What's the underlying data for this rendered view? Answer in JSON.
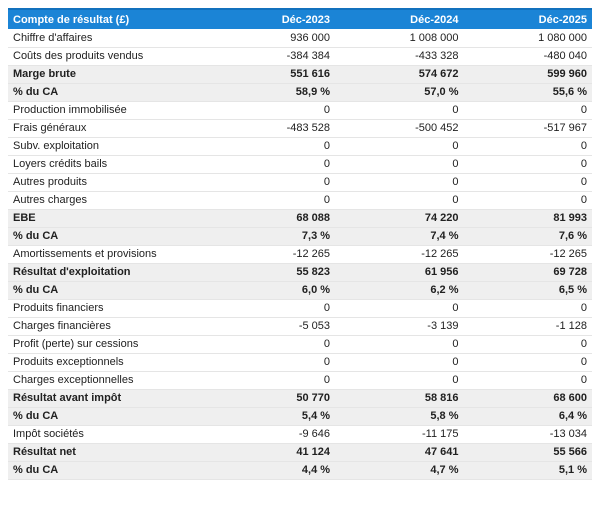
{
  "table": {
    "title": "Compte de résultat (£)",
    "columns": [
      "Déc-2023",
      "Déc-2024",
      "Déc-2025"
    ],
    "rows": [
      {
        "label": "Chiffre d'affaires",
        "values": [
          "936 000",
          "1 008 000",
          "1 080 000"
        ],
        "bold": false
      },
      {
        "label": "Coûts des produits vendus",
        "values": [
          "-384 384",
          "-433 328",
          "-480 040"
        ],
        "bold": false
      },
      {
        "label": "Marge brute",
        "values": [
          "551 616",
          "574 672",
          "599 960"
        ],
        "bold": true
      },
      {
        "label": "% du CA",
        "values": [
          "58,9 %",
          "57,0 %",
          "55,6 %"
        ],
        "bold": true
      },
      {
        "label": "Production immobilisée",
        "values": [
          "0",
          "0",
          "0"
        ],
        "bold": false
      },
      {
        "label": "Frais généraux",
        "values": [
          "-483 528",
          "-500 452",
          "-517 967"
        ],
        "bold": false
      },
      {
        "label": "Subv. exploitation",
        "values": [
          "0",
          "0",
          "0"
        ],
        "bold": false
      },
      {
        "label": "Loyers crédits bails",
        "values": [
          "0",
          "0",
          "0"
        ],
        "bold": false
      },
      {
        "label": "Autres produits",
        "values": [
          "0",
          "0",
          "0"
        ],
        "bold": false
      },
      {
        "label": "Autres charges",
        "values": [
          "0",
          "0",
          "0"
        ],
        "bold": false
      },
      {
        "label": "EBE",
        "values": [
          "68 088",
          "74 220",
          "81 993"
        ],
        "bold": true
      },
      {
        "label": "% du CA",
        "values": [
          "7,3 %",
          "7,4 %",
          "7,6 %"
        ],
        "bold": true
      },
      {
        "label": "Amortissements et provisions",
        "values": [
          "-12 265",
          "-12 265",
          "-12 265"
        ],
        "bold": false
      },
      {
        "label": "Résultat d'exploitation",
        "values": [
          "55 823",
          "61 956",
          "69 728"
        ],
        "bold": true
      },
      {
        "label": "% du CA",
        "values": [
          "6,0 %",
          "6,2 %",
          "6,5 %"
        ],
        "bold": true
      },
      {
        "label": "Produits financiers",
        "values": [
          "0",
          "0",
          "0"
        ],
        "bold": false
      },
      {
        "label": "Charges financières",
        "values": [
          "-5 053",
          "-3 139",
          "-1 128"
        ],
        "bold": false
      },
      {
        "label": "Profit (perte) sur cessions",
        "values": [
          "0",
          "0",
          "0"
        ],
        "bold": false
      },
      {
        "label": "Produits exceptionnels",
        "values": [
          "0",
          "0",
          "0"
        ],
        "bold": false
      },
      {
        "label": "Charges exceptionnelles",
        "values": [
          "0",
          "0",
          "0"
        ],
        "bold": false
      },
      {
        "label": "Résultat avant impôt",
        "values": [
          "50 770",
          "58 816",
          "68 600"
        ],
        "bold": true
      },
      {
        "label": "% du CA",
        "values": [
          "5,4 %",
          "5,8 %",
          "6,4 %"
        ],
        "bold": true
      },
      {
        "label": "Impôt sociétés",
        "values": [
          "-9 646",
          "-11 175",
          "-13 034"
        ],
        "bold": false
      },
      {
        "label": "Résultat net",
        "values": [
          "41 124",
          "47 641",
          "55 566"
        ],
        "bold": true
      },
      {
        "label": "% du CA",
        "values": [
          "4,4 %",
          "4,7 %",
          "5,1 %"
        ],
        "bold": true
      }
    ]
  },
  "colors": {
    "header_bg": "#1b84d6",
    "header_top_border": "#1371bd",
    "header_text": "#ffffff",
    "emphasis_row_bg": "#efefef",
    "row_border": "#e5e5e5",
    "text": "#212121"
  },
  "chart_data": {
    "type": "table",
    "title": "Compte de résultat (£)",
    "categories": [
      "Déc-2023",
      "Déc-2024",
      "Déc-2025"
    ],
    "series": [
      {
        "name": "Chiffre d'affaires",
        "values": [
          936000,
          1008000,
          1080000
        ]
      },
      {
        "name": "Coûts des produits vendus",
        "values": [
          -384384,
          -433328,
          -480040
        ]
      },
      {
        "name": "Marge brute",
        "values": [
          551616,
          574672,
          599960
        ]
      },
      {
        "name": "Marge brute % du CA",
        "values": [
          58.9,
          57.0,
          55.6
        ],
        "unit": "%"
      },
      {
        "name": "Production immobilisée",
        "values": [
          0,
          0,
          0
        ]
      },
      {
        "name": "Frais généraux",
        "values": [
          -483528,
          -500452,
          -517967
        ]
      },
      {
        "name": "Subv. exploitation",
        "values": [
          0,
          0,
          0
        ]
      },
      {
        "name": "Loyers crédits bails",
        "values": [
          0,
          0,
          0
        ]
      },
      {
        "name": "Autres produits",
        "values": [
          0,
          0,
          0
        ]
      },
      {
        "name": "Autres charges",
        "values": [
          0,
          0,
          0
        ]
      },
      {
        "name": "EBE",
        "values": [
          68088,
          74220,
          81993
        ]
      },
      {
        "name": "EBE % du CA",
        "values": [
          7.3,
          7.4,
          7.6
        ],
        "unit": "%"
      },
      {
        "name": "Amortissements et provisions",
        "values": [
          -12265,
          -12265,
          -12265
        ]
      },
      {
        "name": "Résultat d'exploitation",
        "values": [
          55823,
          61956,
          69728
        ]
      },
      {
        "name": "Résultat d'exploitation % du CA",
        "values": [
          6.0,
          6.2,
          6.5
        ],
        "unit": "%"
      },
      {
        "name": "Produits financiers",
        "values": [
          0,
          0,
          0
        ]
      },
      {
        "name": "Charges financières",
        "values": [
          -5053,
          -3139,
          -1128
        ]
      },
      {
        "name": "Profit (perte) sur cessions",
        "values": [
          0,
          0,
          0
        ]
      },
      {
        "name": "Produits exceptionnels",
        "values": [
          0,
          0,
          0
        ]
      },
      {
        "name": "Charges exceptionnelles",
        "values": [
          0,
          0,
          0
        ]
      },
      {
        "name": "Résultat avant impôt",
        "values": [
          50770,
          58816,
          68600
        ]
      },
      {
        "name": "Résultat avant impôt % du CA",
        "values": [
          5.4,
          5.8,
          6.4
        ],
        "unit": "%"
      },
      {
        "name": "Impôt sociétés",
        "values": [
          -9646,
          -11175,
          -13034
        ]
      },
      {
        "name": "Résultat net",
        "values": [
          41124,
          47641,
          55566
        ]
      },
      {
        "name": "Résultat net % du CA",
        "values": [
          4.4,
          4.7,
          5.1
        ],
        "unit": "%"
      }
    ]
  }
}
